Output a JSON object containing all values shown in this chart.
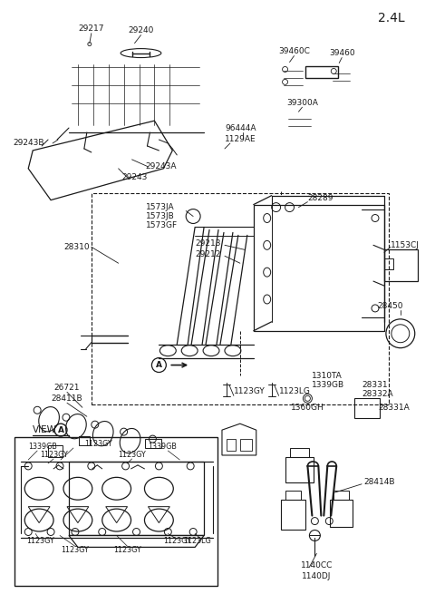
{
  "title": "2.4L",
  "bg_color": "#ffffff",
  "line_color": "#1a1a1a",
  "labels": {
    "cover": [
      "29217",
      "29240",
      "29243B",
      "29243A",
      "29243"
    ],
    "top_right": [
      "39460C",
      "39460",
      "39300A",
      "96444A",
      "1129AE"
    ],
    "manifold": [
      "1573JA",
      "1573JB",
      "1573GF",
      "29213",
      "29212",
      "28289",
      "1153CJ",
      "28310"
    ],
    "bottom": [
      "26721",
      "28411B",
      "1123GY",
      "1123LG",
      "1360GH",
      "1310TA",
      "1339GB",
      "28331",
      "28332A",
      "28331A",
      "28450"
    ],
    "view_a": [
      "1339GB",
      "1123GY",
      "1339GB",
      "1123GY",
      "1123GY",
      "1123GY",
      "1123GY",
      "1123GY",
      "1123LG",
      "1123GY",
      "1123GY"
    ],
    "bracket": [
      "28414B",
      "1140CC",
      "1140DJ"
    ]
  }
}
